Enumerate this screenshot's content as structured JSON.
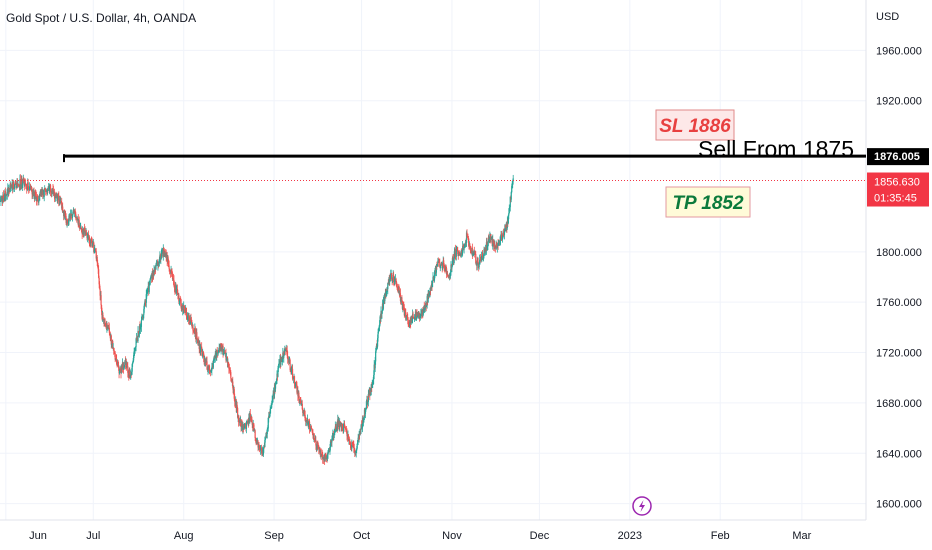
{
  "symbol_title": "Gold Spot / U.S. Dollar, 4h, OANDA",
  "currency": "USD",
  "chart_data": {
    "type": "candlestick",
    "y_ticks": [
      1600,
      1640,
      1680,
      1720,
      1760,
      1800,
      1920,
      1960
    ],
    "y_tick_labels": [
      "1600.000",
      "1640.000",
      "1680.000",
      "1720.000",
      "1760.000",
      "1800.000",
      "1920.000",
      "1960.000"
    ],
    "ylim": [
      1587,
      2000
    ],
    "x_labels": [
      "Jun",
      "Jul",
      "Aug",
      "Sep",
      "Oct",
      "Nov",
      "Dec",
      "2023",
      "Feb",
      "Mar"
    ],
    "price_path": [
      [
        0,
        1840
      ],
      [
        4,
        1852
      ],
      [
        8,
        1856
      ],
      [
        13,
        1842
      ],
      [
        17,
        1852
      ],
      [
        21,
        1838
      ],
      [
        23,
        1822
      ],
      [
        25,
        1832
      ],
      [
        28,
        1818
      ],
      [
        31,
        1810
      ],
      [
        33,
        1798
      ],
      [
        34,
        1775
      ],
      [
        35,
        1750
      ],
      [
        37,
        1740
      ],
      [
        39,
        1722
      ],
      [
        41,
        1705
      ],
      [
        43,
        1712
      ],
      [
        45,
        1700
      ],
      [
        46,
        1722
      ],
      [
        48,
        1740
      ],
      [
        50,
        1762
      ],
      [
        52,
        1780
      ],
      [
        54,
        1790
      ],
      [
        56,
        1800
      ],
      [
        58,
        1790
      ],
      [
        60,
        1772
      ],
      [
        62,
        1758
      ],
      [
        64,
        1750
      ],
      [
        66,
        1742
      ],
      [
        68,
        1728
      ],
      [
        70,
        1715
      ],
      [
        72,
        1705
      ],
      [
        74,
        1718
      ],
      [
        76,
        1725
      ],
      [
        78,
        1712
      ],
      [
        80,
        1690
      ],
      [
        82,
        1665
      ],
      [
        84,
        1660
      ],
      [
        86,
        1670
      ],
      [
        88,
        1648
      ],
      [
        90,
        1640
      ],
      [
        92,
        1665
      ],
      [
        94,
        1690
      ],
      [
        96,
        1712
      ],
      [
        98,
        1722
      ],
      [
        100,
        1705
      ],
      [
        102,
        1690
      ],
      [
        104,
        1672
      ],
      [
        106,
        1662
      ],
      [
        108,
        1650
      ],
      [
        110,
        1640
      ],
      [
        112,
        1635
      ],
      [
        114,
        1652
      ],
      [
        116,
        1665
      ],
      [
        118,
        1660
      ],
      [
        120,
        1648
      ],
      [
        122,
        1640
      ],
      [
        124,
        1662
      ],
      [
        126,
        1682
      ],
      [
        128,
        1700
      ],
      [
        130,
        1742
      ],
      [
        132,
        1766
      ],
      [
        134,
        1782
      ],
      [
        136,
        1776
      ],
      [
        138,
        1758
      ],
      [
        140,
        1742
      ],
      [
        142,
        1750
      ],
      [
        144,
        1748
      ],
      [
        146,
        1758
      ],
      [
        148,
        1772
      ],
      [
        150,
        1792
      ],
      [
        152,
        1790
      ],
      [
        154,
        1780
      ],
      [
        156,
        1800
      ],
      [
        158,
        1796
      ],
      [
        160,
        1812
      ],
      [
        162,
        1800
      ],
      [
        164,
        1790
      ],
      [
        166,
        1800
      ],
      [
        168,
        1812
      ],
      [
        170,
        1802
      ],
      [
        172,
        1812
      ],
      [
        174,
        1822
      ],
      [
        175,
        1842
      ],
      [
        176,
        1856
      ]
    ],
    "x_label_days": [
      2,
      32,
      63,
      94,
      124,
      155,
      185,
      216,
      247,
      275
    ],
    "lines": {
      "sell_level": 1876.005,
      "current_price": 1856.63
    },
    "badges": {
      "sell_level": "1876.005",
      "current_price": "1856.630",
      "countdown": "01:35:45"
    },
    "annotations": {
      "sl": "SL 1886",
      "sell": "Sell From 1875",
      "tp": "TP 1852"
    }
  },
  "colors": {
    "up": "#26a69a",
    "down": "#ef5350",
    "grid": "#f0f3fa",
    "axis_border": "#e0e3eb",
    "text": "#131722",
    "sl_text": "#e84040",
    "sl_bg": "#fde8e8",
    "sl_border": "#e08a8a",
    "tp_text": "#0b7a3b",
    "tp_bg": "#fffbd8",
    "tp_border": "#e39aa0",
    "price_badge": "#f23645",
    "black": "#000000",
    "flash_icon": "#9c27b0"
  }
}
